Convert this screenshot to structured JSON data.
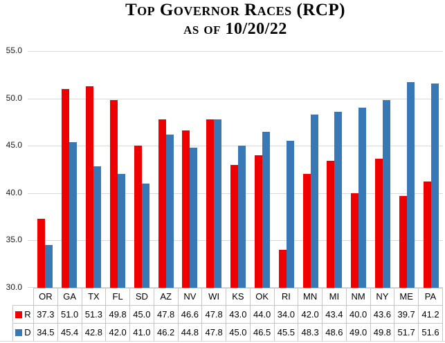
{
  "chart_data": {
    "type": "bar",
    "title": "Top Governor Races (RCP)",
    "subtitle": "as of 10/20/22",
    "categories": [
      "OR",
      "GA",
      "TX",
      "FL",
      "SD",
      "AZ",
      "NV",
      "WI",
      "KS",
      "OK",
      "RI",
      "MN",
      "MI",
      "NM",
      "NY",
      "ME",
      "PA"
    ],
    "series": [
      {
        "name": "R",
        "color": "#ee0000",
        "values": [
          37.3,
          51.0,
          51.3,
          49.8,
          45.0,
          47.8,
          46.6,
          47.8,
          43.0,
          44.0,
          34.0,
          42.0,
          43.4,
          40.0,
          43.6,
          39.7,
          41.2
        ]
      },
      {
        "name": "D",
        "color": "#3878b4",
        "values": [
          34.5,
          45.4,
          42.8,
          42.0,
          41.0,
          46.2,
          44.8,
          47.8,
          45.0,
          46.5,
          45.5,
          48.3,
          48.6,
          49.0,
          49.8,
          51.7,
          51.6
        ]
      }
    ],
    "ylim": [
      30.0,
      55.0
    ],
    "yticks": [
      "55.0",
      "50.0",
      "45.0",
      "40.0",
      "35.0",
      "30.0"
    ],
    "grid": true,
    "legend_position": "table-left",
    "value_decimals": 1
  }
}
